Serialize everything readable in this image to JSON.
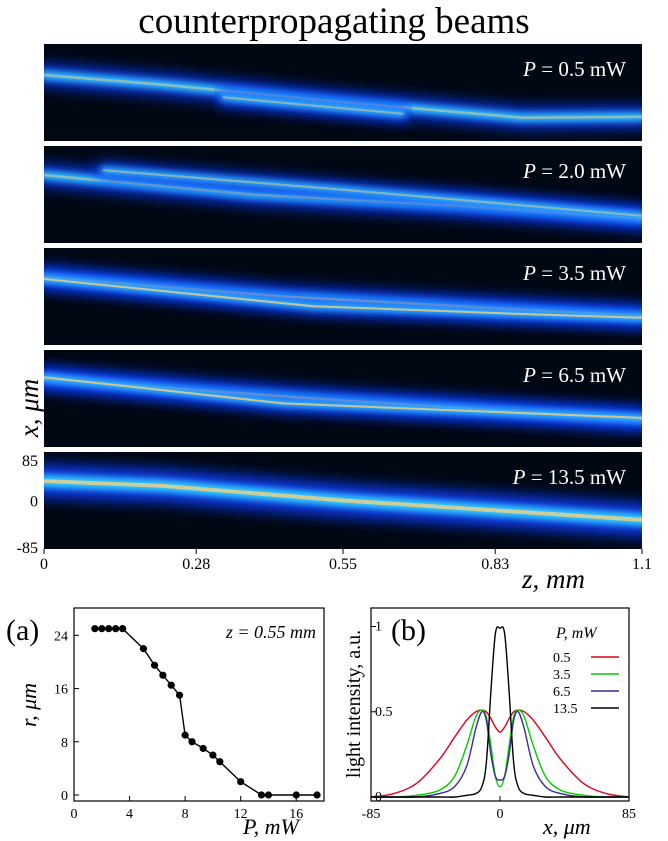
{
  "title": "counterpropagating beams",
  "colors": {
    "panel_bg": "#000814",
    "beam_outer": "#0a3cff",
    "beam_mid": "#33ccff",
    "beam_core": "#ffd27a"
  },
  "chart_data": [
    {
      "type": "heatmap",
      "title": "counterpropagating beams",
      "xlabel": "z, mm",
      "ylabel": "x, μm",
      "x_ticks": [
        "0",
        "0.28",
        "0.55",
        "0.83",
        "1.1"
      ],
      "y_ticks": [
        "85",
        "0",
        "-85"
      ],
      "xlim": [
        0,
        1.1
      ],
      "ylim": [
        -85,
        85
      ],
      "panels": [
        {
          "label": "P = 0.5 mW",
          "P": "0.5",
          "unit": "mW"
        },
        {
          "label": "P = 2.0 mW",
          "P": "2.0",
          "unit": "mW"
        },
        {
          "label": "P = 3.5 mW",
          "P": "3.5",
          "unit": "mW"
        },
        {
          "label": "P = 6.5 mW",
          "P": "6.5",
          "unit": "mW"
        },
        {
          "label": "P = 13.5 mW",
          "P": "13.5",
          "unit": "mW"
        }
      ]
    },
    {
      "type": "line",
      "panel_label": "(a)",
      "annotation": "z = 0.55 mm",
      "xlabel": "P, mW",
      "ylabel": "r, μm",
      "x_ticks": [
        "0",
        "4",
        "8",
        "12",
        "16"
      ],
      "y_ticks": [
        "0",
        "8",
        "16",
        "24"
      ],
      "xlim": [
        0,
        18
      ],
      "ylim": [
        0,
        26
      ],
      "x": [
        1.5,
        2,
        2.5,
        3,
        3.5,
        5,
        5.8,
        6.4,
        7,
        7.6,
        8,
        8.5,
        9.3,
        10,
        10.5,
        12,
        13.5,
        14,
        16,
        17.5
      ],
      "y": [
        25,
        25,
        25,
        25,
        25,
        22,
        19.5,
        18,
        16.5,
        15,
        9,
        8,
        7,
        6,
        5,
        2,
        0,
        0,
        0,
        0
      ]
    },
    {
      "type": "line",
      "panel_label": "(b)",
      "xlabel": "x, μm",
      "ylabel": "light intensity, a.u.",
      "legend_title": "P, mW",
      "legend_position": "top-right",
      "x_ticks": [
        "-85",
        "0",
        "85"
      ],
      "y_ticks": [
        "0",
        "0.5",
        "1"
      ],
      "xlim": [
        -85,
        85
      ],
      "ylim": [
        0,
        1.05
      ],
      "x": [
        -85,
        -70,
        -55,
        -40,
        -30,
        -22,
        -16,
        -12,
        -9,
        -6,
        -3,
        0,
        3,
        6,
        9,
        12,
        16,
        22,
        30,
        40,
        55,
        70,
        85
      ],
      "series": [
        {
          "name": "0.5",
          "color": "#e3001b",
          "values": [
            0.0,
            0.02,
            0.08,
            0.22,
            0.35,
            0.45,
            0.5,
            0.51,
            0.5,
            0.46,
            0.41,
            0.38,
            0.41,
            0.46,
            0.5,
            0.51,
            0.5,
            0.45,
            0.35,
            0.22,
            0.08,
            0.02,
            0.0
          ]
        },
        {
          "name": "3.5",
          "color": "#00cc00",
          "values": [
            0.0,
            0.0,
            0.01,
            0.04,
            0.12,
            0.3,
            0.47,
            0.51,
            0.47,
            0.3,
            0.12,
            0.06,
            0.12,
            0.3,
            0.47,
            0.51,
            0.47,
            0.3,
            0.12,
            0.04,
            0.01,
            0.0,
            0.0
          ]
        },
        {
          "name": "6.5",
          "color": "#3b2a9c",
          "values": [
            0.0,
            0.0,
            0.0,
            0.02,
            0.06,
            0.18,
            0.4,
            0.5,
            0.45,
            0.25,
            0.12,
            0.1,
            0.12,
            0.25,
            0.45,
            0.5,
            0.4,
            0.18,
            0.06,
            0.02,
            0.0,
            0.0,
            0.0
          ]
        },
        {
          "name": "13.5",
          "color": "#000000",
          "values": [
            0.0,
            0.0,
            0.0,
            0.0,
            0.0,
            0.01,
            0.02,
            0.06,
            0.2,
            0.62,
            0.96,
            0.99,
            0.96,
            0.62,
            0.2,
            0.06,
            0.02,
            0.01,
            0.0,
            0.0,
            0.0,
            0.0,
            0.0
          ]
        }
      ]
    }
  ]
}
